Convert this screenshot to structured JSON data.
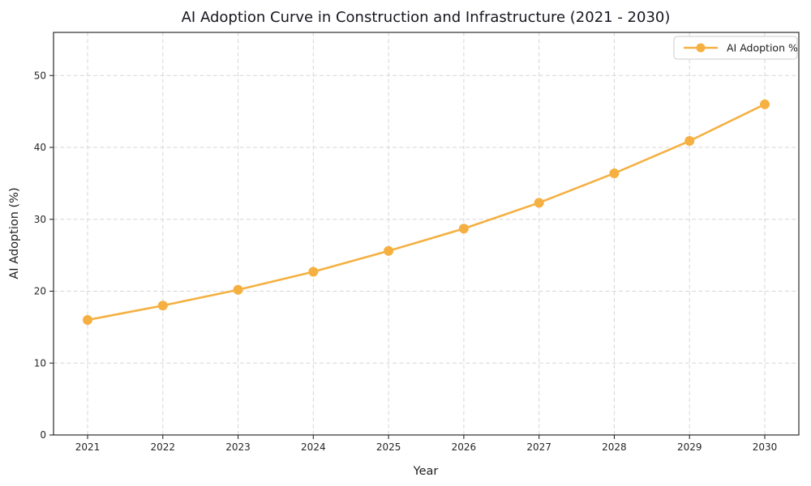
{
  "chart_data": {
    "type": "line",
    "title": "AI Adoption Curve in Construction and Infrastructure (2021 - 2030)",
    "xlabel": "Year",
    "ylabel": "AI Adoption (%)",
    "x": [
      2021,
      2022,
      2023,
      2024,
      2025,
      2026,
      2027,
      2028,
      2029,
      2030
    ],
    "series": [
      {
        "name": "AI Adoption %",
        "values": [
          16.0,
          18.0,
          20.2,
          22.7,
          25.6,
          28.7,
          32.3,
          36.4,
          40.9,
          46.0
        ],
        "color": "#F5B041",
        "marker": "circle"
      }
    ],
    "ylim": [
      0,
      56
    ],
    "yticks": [
      0,
      10,
      20,
      30,
      40,
      50
    ],
    "grid": true,
    "grid_style": "dashed",
    "legend_position": "upper right",
    "colors": {
      "line": "#F5B041",
      "grid": "#d6d6d6",
      "spine": "#2b2b2b",
      "text": "#1c1c1c",
      "background": "#ffffff"
    }
  }
}
